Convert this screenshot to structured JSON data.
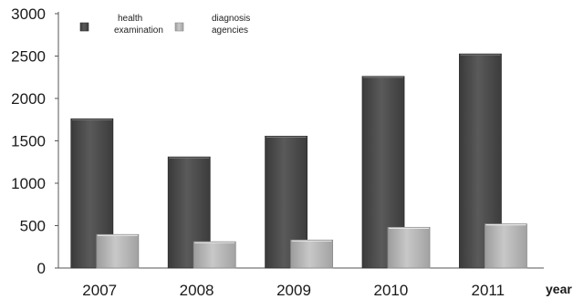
{
  "chart_data": {
    "type": "bar",
    "categories": [
      "2007",
      "2008",
      "2009",
      "2010",
      "2011"
    ],
    "series": [
      {
        "name": "health examination",
        "values": [
          1760,
          1310,
          1555,
          2260,
          2525
        ],
        "color": "#4a4a4a"
      },
      {
        "name": "diagnosis agencies",
        "values": [
          395,
          310,
          330,
          480,
          520
        ],
        "color": "#b3b3b3"
      }
    ],
    "legend": {
      "position": "top-left",
      "entries": [
        {
          "lines": [
            "health",
            "examination"
          ]
        },
        {
          "lines": [
            "diagnosis",
            "agencies"
          ]
        }
      ]
    },
    "yticks": [
      "0",
      "500",
      "1000",
      "1500",
      "2000",
      "2500",
      "3000"
    ],
    "ylim": [
      0,
      3000
    ],
    "xlabel": "year",
    "ylabel": "",
    "title": "",
    "grid": false
  }
}
